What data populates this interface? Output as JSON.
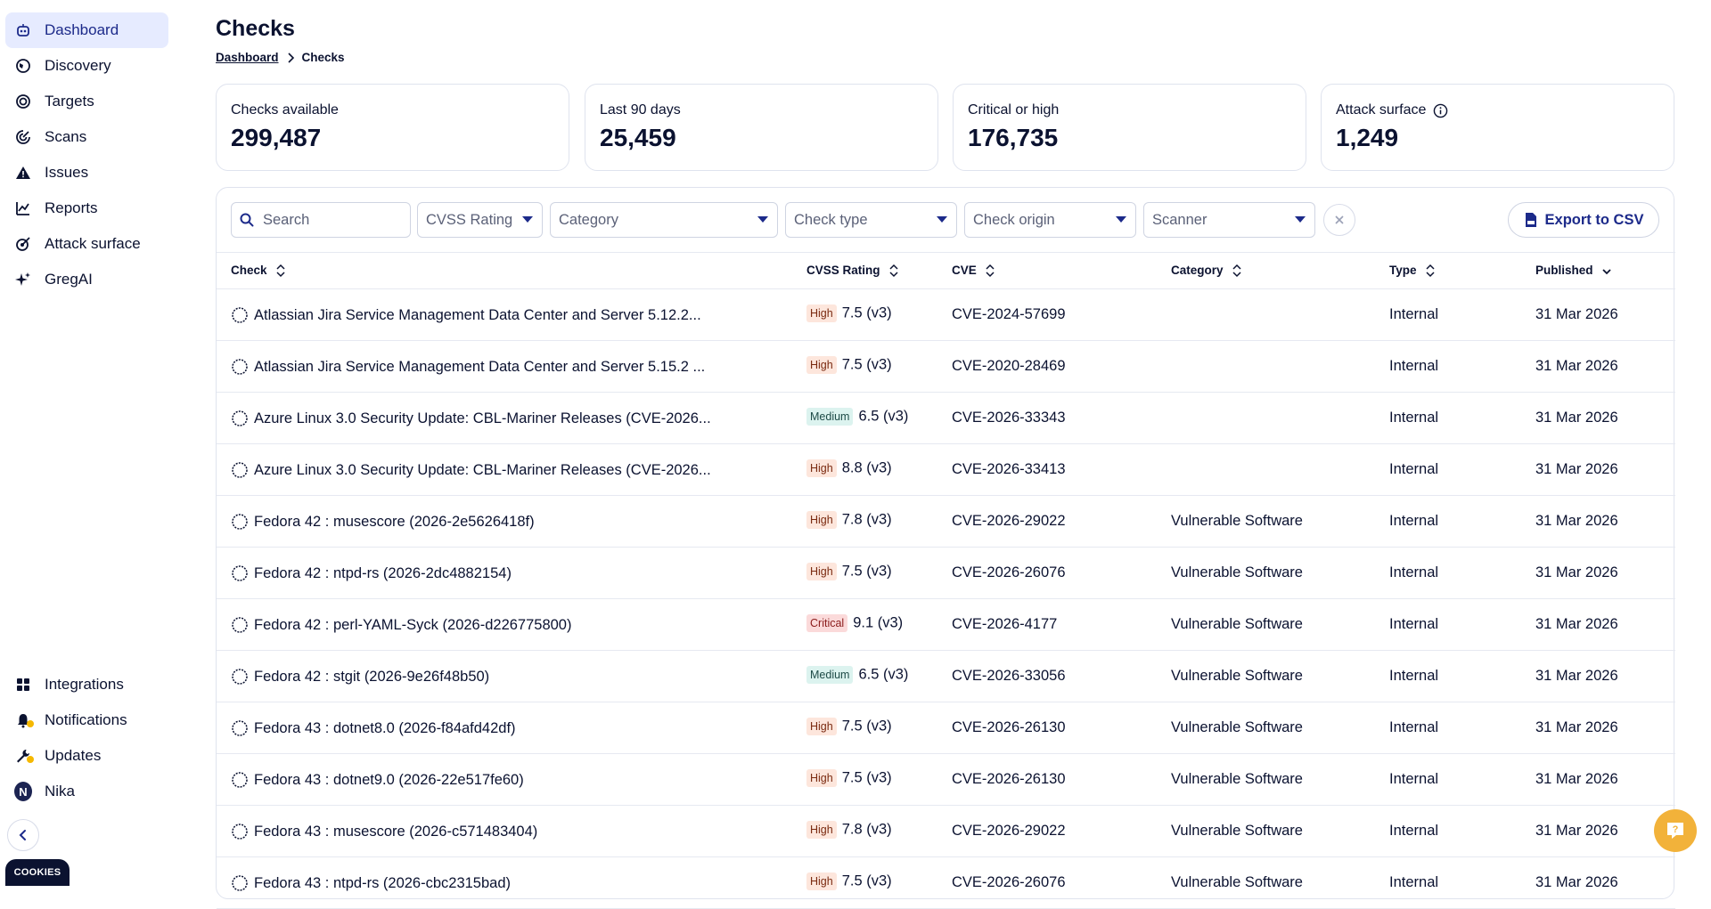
{
  "sidebar": {
    "top_items": [
      {
        "label": "Dashboard",
        "icon": "robot-icon",
        "active": true
      },
      {
        "label": "Discovery",
        "icon": "globe-icon",
        "active": false
      },
      {
        "label": "Targets",
        "icon": "target-icon",
        "active": false
      },
      {
        "label": "Scans",
        "icon": "radar-icon",
        "active": false
      },
      {
        "label": "Issues",
        "icon": "warning-icon",
        "active": false
      },
      {
        "label": "Reports",
        "icon": "chart-icon",
        "active": false
      },
      {
        "label": "Attack surface",
        "icon": "attack-surface-icon",
        "active": false
      },
      {
        "label": "GregAI",
        "icon": "sparkle-icon",
        "active": false
      }
    ],
    "bottom_items": [
      {
        "label": "Integrations",
        "icon": "grid-icon"
      },
      {
        "label": "Notifications",
        "icon": "bell-icon"
      },
      {
        "label": "Updates",
        "icon": "wrench-icon"
      },
      {
        "label": "Nika",
        "icon": "avatar",
        "initial": "N"
      }
    ],
    "cookies_label": "COOKIES"
  },
  "page": {
    "title": "Checks",
    "breadcrumb": {
      "link": "Dashboard",
      "current": "Checks"
    }
  },
  "stats": [
    {
      "label": "Checks available",
      "value": "299,487"
    },
    {
      "label": "Last 90 days",
      "value": "25,459"
    },
    {
      "label": "Critical or high",
      "value": "176,735"
    },
    {
      "label": "Attack surface",
      "value": "1,249",
      "info": true
    }
  ],
  "filters": {
    "search_placeholder": "Search",
    "cvss": "CVSS Rating",
    "category": "Category",
    "check_type": "Check type",
    "check_origin": "Check origin",
    "scanner": "Scanner",
    "export_label": "Export to CSV"
  },
  "table": {
    "headers": {
      "check": "Check",
      "cvss": "CVSS Rating",
      "cve": "CVE",
      "category": "Category",
      "type": "Type",
      "published": "Published"
    },
    "rows": [
      {
        "check": "Atlassian Jira Service Management Data Center and Server 5.12.2...",
        "severity": "High",
        "score": "7.5 (v3)",
        "cve": "CVE-2024-57699",
        "category": "",
        "type": "Internal",
        "published": "31 Mar 2026"
      },
      {
        "check": "Atlassian Jira Service Management Data Center and Server 5.15.2 ...",
        "severity": "High",
        "score": "7.5 (v3)",
        "cve": "CVE-2020-28469",
        "category": "",
        "type": "Internal",
        "published": "31 Mar 2026"
      },
      {
        "check": "Azure Linux 3.0 Security Update: CBL-Mariner Releases (CVE-2026...",
        "severity": "Medium",
        "score": "6.5 (v3)",
        "cve": "CVE-2026-33343",
        "category": "",
        "type": "Internal",
        "published": "31 Mar 2026"
      },
      {
        "check": "Azure Linux 3.0 Security Update: CBL-Mariner Releases (CVE-2026...",
        "severity": "High",
        "score": "8.8 (v3)",
        "cve": "CVE-2026-33413",
        "category": "",
        "type": "Internal",
        "published": "31 Mar 2026"
      },
      {
        "check": "Fedora 42 : musescore (2026-2e5626418f)",
        "severity": "High",
        "score": "7.8 (v3)",
        "cve": "CVE-2026-29022",
        "category": "Vulnerable Software",
        "type": "Internal",
        "published": "31 Mar 2026"
      },
      {
        "check": "Fedora 42 : ntpd-rs (2026-2dc4882154)",
        "severity": "High",
        "score": "7.5 (v3)",
        "cve": "CVE-2026-26076",
        "category": "Vulnerable Software",
        "type": "Internal",
        "published": "31 Mar 2026"
      },
      {
        "check": "Fedora 42 : perl-YAML-Syck (2026-d226775800)",
        "severity": "Critical",
        "score": "9.1 (v3)",
        "cve": "CVE-2026-4177",
        "category": "Vulnerable Software",
        "type": "Internal",
        "published": "31 Mar 2026"
      },
      {
        "check": "Fedora 42 : stgit (2026-9e26f48b50)",
        "severity": "Medium",
        "score": "6.5 (v3)",
        "cve": "CVE-2026-33056",
        "category": "Vulnerable Software",
        "type": "Internal",
        "published": "31 Mar 2026"
      },
      {
        "check": "Fedora 43 : dotnet8.0 (2026-f84afd42df)",
        "severity": "High",
        "score": "7.5 (v3)",
        "cve": "CVE-2026-26130",
        "category": "Vulnerable Software",
        "type": "Internal",
        "published": "31 Mar 2026"
      },
      {
        "check": "Fedora 43 : dotnet9.0 (2026-22e517fe60)",
        "severity": "High",
        "score": "7.5 (v3)",
        "cve": "CVE-2026-26130",
        "category": "Vulnerable Software",
        "type": "Internal",
        "published": "31 Mar 2026"
      },
      {
        "check": "Fedora 43 : musescore (2026-c571483404)",
        "severity": "High",
        "score": "7.8 (v3)",
        "cve": "CVE-2026-29022",
        "category": "Vulnerable Software",
        "type": "Internal",
        "published": "31 Mar 2026"
      },
      {
        "check": "Fedora 43 : ntpd-rs (2026-cbc2315bad)",
        "severity": "High",
        "score": "7.5 (v3)",
        "cve": "CVE-2026-26076",
        "category": "Vulnerable Software",
        "type": "Internal",
        "published": "31 Mar 2026"
      }
    ]
  },
  "colors": {
    "accent": "#1c2a8a",
    "active_nav_bg": "#e6ebff",
    "high_badge": "#fde6dc",
    "medium_badge": "#dcf3ef",
    "critical_badge": "#fbdada",
    "help_button": "#f2b23a"
  }
}
